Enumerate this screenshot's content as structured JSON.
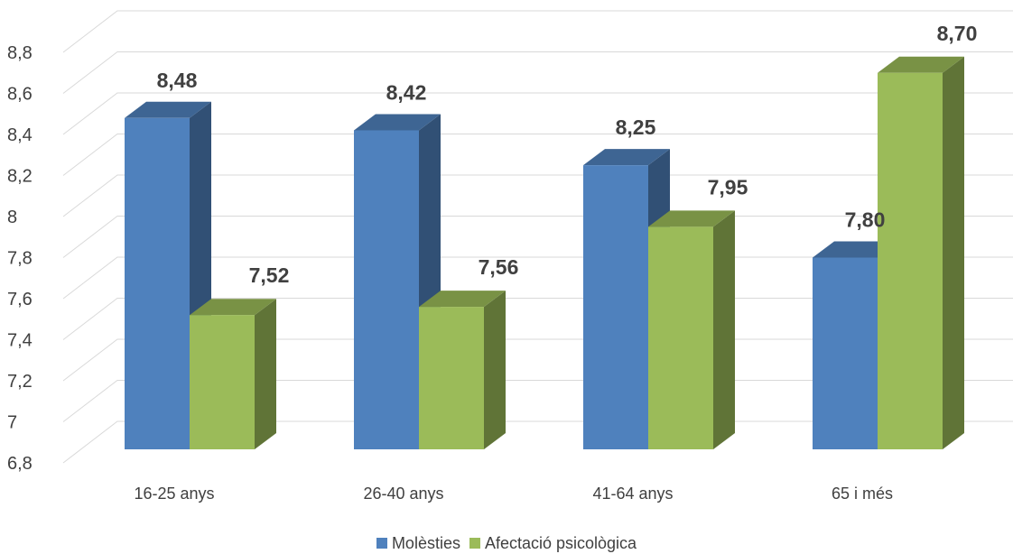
{
  "chart_data": {
    "type": "bar",
    "title": "",
    "xlabel": "",
    "ylabel": "",
    "categories": [
      "16-25 anys",
      "26-40 anys",
      "41-64 anys",
      "65 i més"
    ],
    "series": [
      {
        "name": "Molèsties",
        "values": [
          8.48,
          8.42,
          8.25,
          7.8
        ],
        "labels": [
          "8,48",
          "8,42",
          "8,25",
          "7,80"
        ],
        "color": "#4F81BD"
      },
      {
        "name": "Afectació psicològica",
        "values": [
          7.52,
          7.56,
          7.95,
          8.7
        ],
        "labels": [
          "7,52",
          "7,56",
          "7,95",
          "8,70"
        ],
        "color": "#9BBB59"
      }
    ],
    "ylim": [
      6.8,
      8.8
    ],
    "yticks": [
      "6,8",
      "7",
      "7,2",
      "7,4",
      "7,6",
      "7,8",
      "8",
      "8,2",
      "8,4",
      "8,6",
      "8,8"
    ],
    "grid": true,
    "style": "3d-clustered-column",
    "legend_position": "bottom"
  }
}
